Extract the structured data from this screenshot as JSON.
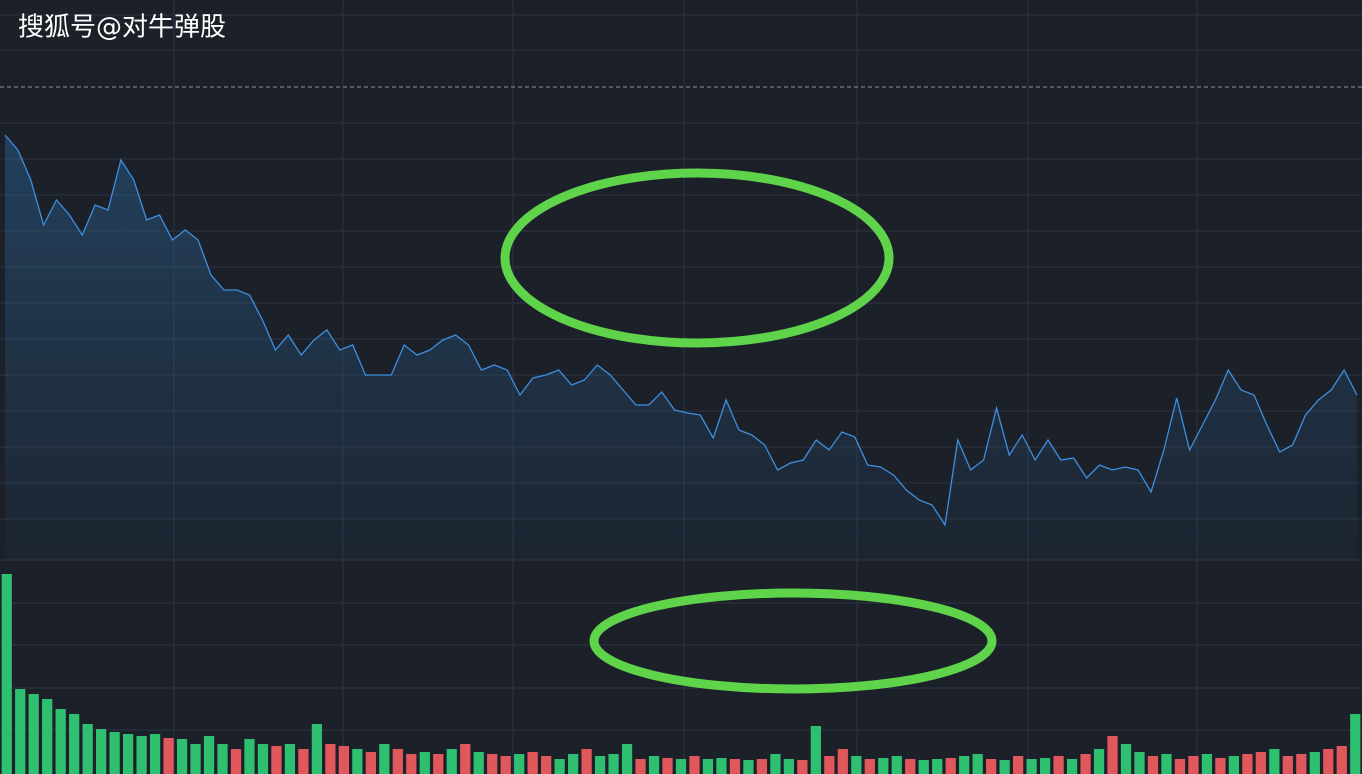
{
  "watermark": "搜狐号@对牛弹股",
  "chart_data": [
    {
      "type": "line",
      "color": "#3d8fe0",
      "ylim": [
        0,
        560
      ],
      "reference_line": 473,
      "values": [
        425,
        410,
        380,
        335,
        360,
        345,
        325,
        355,
        350,
        400,
        380,
        340,
        345,
        320,
        330,
        320,
        285,
        270,
        270,
        265,
        240,
        210,
        225,
        205,
        220,
        230,
        210,
        215,
        185,
        185,
        185,
        215,
        205,
        210,
        220,
        225,
        215,
        190,
        195,
        190,
        165,
        182,
        185,
        190,
        175,
        180,
        195,
        185,
        170,
        155,
        155,
        168,
        150,
        147,
        145,
        122,
        160,
        130,
        125,
        115,
        90,
        97,
        100,
        120,
        110,
        128,
        123,
        95,
        93,
        85,
        70,
        60,
        55,
        35,
        120,
        90,
        100,
        152,
        105,
        125,
        100,
        120,
        100,
        102,
        82,
        95,
        90,
        93,
        90,
        68,
        110,
        162,
        110,
        135,
        160,
        190,
        170,
        165,
        135,
        108,
        115,
        145,
        160,
        170,
        190,
        165
      ]
    },
    {
      "type": "bar",
      "ylim": [
        0,
        200
      ],
      "values": [
        200,
        85,
        80,
        75,
        65,
        60,
        50,
        45,
        42,
        40,
        38,
        40,
        36,
        35,
        30,
        38,
        30,
        25,
        35,
        30,
        28,
        30,
        25,
        50,
        30,
        28,
        25,
        22,
        30,
        25,
        20,
        22,
        20,
        25,
        30,
        22,
        20,
        18,
        20,
        22,
        18,
        15,
        20,
        25,
        18,
        20,
        30,
        15,
        18,
        16,
        15,
        18,
        15,
        16,
        15,
        14,
        15,
        20,
        15,
        14,
        48,
        18,
        25,
        18,
        15,
        16,
        18,
        15,
        14,
        15,
        16,
        18,
        20,
        15,
        14,
        18,
        15,
        16,
        18,
        15,
        20,
        25,
        38,
        30,
        22,
        18,
        20,
        15,
        18,
        20,
        16,
        18,
        20,
        22,
        25,
        18,
        20,
        22,
        25,
        28,
        60
      ],
      "colors": [
        "#2fbf71",
        "#2fbf71",
        "#2fbf71",
        "#2fbf71",
        "#2fbf71",
        "#2fbf71",
        "#2fbf71",
        "#2fbf71",
        "#2fbf71",
        "#2fbf71",
        "#2fbf71",
        "#2fbf71",
        "#e0585b",
        "#2fbf71",
        "#2fbf71",
        "#2fbf71",
        "#2fbf71",
        "#e0585b",
        "#2fbf71",
        "#2fbf71",
        "#e0585b",
        "#2fbf71",
        "#e0585b",
        "#2fbf71",
        "#e0585b",
        "#e0585b",
        "#2fbf71",
        "#e0585b",
        "#2fbf71",
        "#e0585b",
        "#e0585b",
        "#2fbf71",
        "#e0585b",
        "#2fbf71",
        "#e0585b",
        "#2fbf71",
        "#e0585b",
        "#e0585b",
        "#2fbf71",
        "#e0585b",
        "#e0585b",
        "#2fbf71",
        "#2fbf71",
        "#e0585b",
        "#2fbf71",
        "#2fbf71",
        "#2fbf71",
        "#e0585b",
        "#2fbf71",
        "#e0585b",
        "#2fbf71",
        "#e0585b",
        "#2fbf71",
        "#2fbf71",
        "#e0585b",
        "#2fbf71",
        "#e0585b",
        "#2fbf71",
        "#2fbf71",
        "#e0585b",
        "#2fbf71",
        "#e0585b",
        "#e0585b",
        "#2fbf71",
        "#e0585b",
        "#2fbf71",
        "#2fbf71",
        "#e0585b",
        "#2fbf71",
        "#2fbf71",
        "#e0585b",
        "#2fbf71",
        "#2fbf71",
        "#e0585b",
        "#2fbf71",
        "#e0585b",
        "#2fbf71",
        "#2fbf71",
        "#e0585b",
        "#2fbf71",
        "#e0585b",
        "#2fbf71",
        "#e0585b",
        "#2fbf71",
        "#2fbf71",
        "#e0585b",
        "#2fbf71",
        "#e0585b",
        "#e0585b",
        "#2fbf71",
        "#e0585b",
        "#2fbf71",
        "#e0585b",
        "#e0585b",
        "#2fbf71",
        "#e0585b",
        "#e0585b",
        "#2fbf71",
        "#e0585b",
        "#e0585b",
        "#2fbf71"
      ]
    }
  ]
}
